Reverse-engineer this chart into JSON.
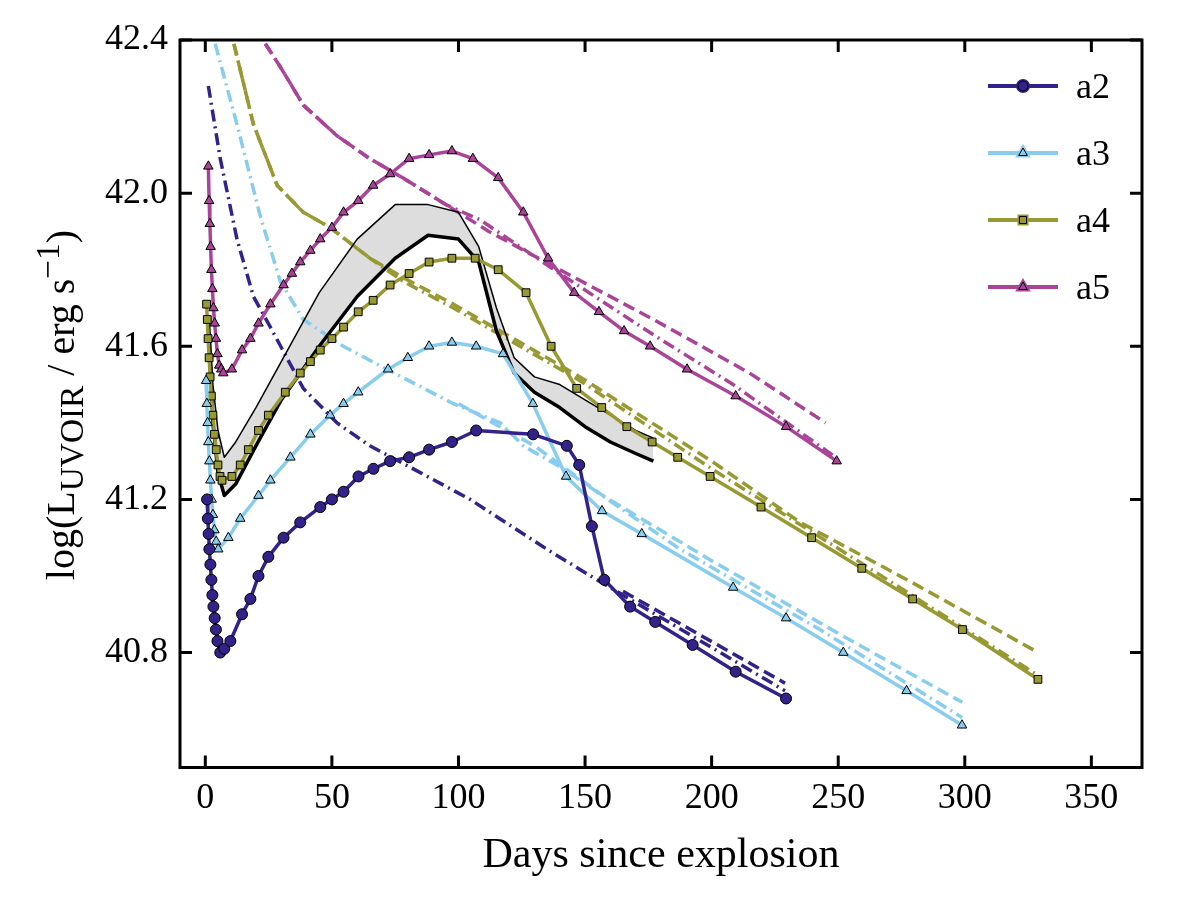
{
  "chart_data": {
    "type": "line",
    "xlabel": "Days since explosion",
    "ylabel": "log(L$_{UVOIR}$ / erg s$^{−1}$)",
    "xlim": [
      -10,
      370
    ],
    "xticks": [
      0,
      50,
      100,
      150,
      200,
      250,
      300,
      350
    ],
    "ylim": [
      40.5,
      42.4
    ],
    "yticks": [
      {
        "value": 40.8,
        "label": "40.8"
      },
      {
        "value": 41.2,
        "label": "41.2"
      },
      {
        "value": 41.6,
        "label": "41.6"
      },
      {
        "value": 42,
        "label": "42.0"
      },
      {
        "value": 42.4,
        "label": "42.4"
      }
    ],
    "legend": "top right",
    "series": [
      {
        "type": "line",
        "color": "#000000",
        "x": [
          1.5,
          3,
          5,
          7.5,
          12,
          20,
          30,
          45,
          60,
          75,
          88,
          100,
          108,
          115,
          122,
          130,
          140,
          150,
          160,
          170,
          177
        ],
        "values": [
          41.68,
          41.5,
          41.38,
          41.31,
          41.35,
          41.44,
          41.56,
          41.74,
          41.88,
          41.97,
          41.97,
          41.95,
          41.86,
          41.7,
          41.57,
          41.52,
          41.5,
          41.46,
          41.42,
          41.38,
          41.36
        ],
        "upper": [
          41.68,
          41.5,
          41.38,
          41.31,
          41.35,
          41.44,
          41.56,
          41.74,
          41.88,
          41.97,
          41.97,
          41.95,
          41.86,
          41.7,
          41.57,
          41.52,
          41.5,
          41.46,
          41.42,
          41.38,
          41.36
        ],
        "lower": [
          41.62,
          41.4,
          41.27,
          41.21,
          41.24,
          41.34,
          41.46,
          41.6,
          41.73,
          41.83,
          41.89,
          41.88,
          41.82,
          41.64,
          41.53,
          41.48,
          41.44,
          41.39,
          41.35,
          41.32,
          41.3
        ]
      },
      {
        "type": "line",
        "color": "#000000",
        "x": [
          1.5,
          3,
          5,
          7.5,
          12,
          20,
          30,
          45,
          60,
          75,
          88,
          100,
          108,
          115,
          122,
          130,
          140,
          150,
          160,
          170,
          177
        ],
        "values": [
          41.62,
          41.4,
          41.27,
          41.21,
          41.24,
          41.34,
          41.46,
          41.6,
          41.73,
          41.83,
          41.89,
          41.88,
          41.82,
          41.64,
          41.53,
          41.48,
          41.44,
          41.39,
          41.35,
          41.32,
          41.3
        ]
      },
      {
        "type": "line",
        "color": "#332288",
        "line_style": "dotted",
        "marker": "none",
        "x": [
          1.2,
          5.9,
          12.5,
          19,
          25.7,
          38.7,
          52,
          65,
          84.9,
          104.6,
          134.9,
          154.7,
          165,
          229
        ],
        "values": [
          42.28,
          42.09,
          41.88,
          41.73,
          41.65,
          41.49,
          41.4,
          41.34,
          41.27,
          41.2,
          41.07,
          40.99,
          40.95,
          40.7
        ]
      },
      {
        "type": "line",
        "color": "#332288",
        "line_style": "dashed",
        "marker": "none",
        "x": [
          165,
          229
        ],
        "values": [
          40.96,
          40.72
        ]
      },
      {
        "type": "line",
        "color": "#88ccee",
        "line_style": "dotted",
        "marker": "none",
        "x": [
          3.9,
          12.5,
          21.7,
          29.6,
          38.7,
          54.5,
          71.7,
          98,
          116.5,
          125.6,
          141.4,
          187.5,
          242.8,
          299
        ],
        "values": [
          42.39,
          42.18,
          41.94,
          41.77,
          41.67,
          41.6,
          41.54,
          41.45,
          41.4,
          41.34,
          41.28,
          41.07,
          40.86,
          40.63
        ]
      },
      {
        "type": "line",
        "color": "#88ccee",
        "line_style": "dashed",
        "marker": "none",
        "x": [
          100,
          130,
          157,
          200,
          250,
          299
        ],
        "values": [
          41.45,
          41.34,
          41.21,
          41.04,
          40.85,
          40.67
        ]
      },
      {
        "type": "line",
        "color": "#999933",
        "line_style": "dashed",
        "marker": "none",
        "x": [
          11.3,
          19,
          28.4,
          38.7,
          49.3,
          65,
          78,
          98,
          116.5,
          148,
          200,
          235,
          280,
          329
        ],
        "values": [
          42.39,
          42.18,
          42.02,
          41.95,
          41.91,
          41.83,
          41.78,
          41.71,
          41.64,
          41.52,
          41.3,
          41.14,
          40.98,
          40.8
        ]
      },
      {
        "type": "line",
        "color": "#999933",
        "line_style": "dotted",
        "marker": "none",
        "x": [
          11.3,
          19,
          28.4,
          38.7,
          49.3,
          65,
          78,
          98,
          116.5,
          148,
          200,
          260,
          329
        ],
        "values": [
          42.39,
          42.18,
          42.02,
          41.95,
          41.91,
          41.83,
          41.77,
          41.7,
          41.63,
          41.51,
          41.28,
          41.03,
          40.74
        ]
      },
      {
        "type": "line",
        "color": "#aa4499",
        "line_style": "dashed",
        "marker": "none",
        "x": [
          23.7,
          29.6,
          38.7,
          52,
          65,
          78,
          95,
          112,
          140,
          177,
          215,
          245
        ],
        "values": [
          42.39,
          42.33,
          42.23,
          42.15,
          42.09,
          42.04,
          41.97,
          41.9,
          41.8,
          41.67,
          41.53,
          41.4
        ]
      },
      {
        "type": "line",
        "color": "#aa4499",
        "line_style": "dotted",
        "marker": "none",
        "x": [
          23.7,
          29.6,
          38.7,
          52,
          65,
          78,
          95,
          108.6,
          140,
          177,
          208.5,
          249
        ],
        "values": [
          42.39,
          42.33,
          42.23,
          42.15,
          42.09,
          42.04,
          41.97,
          41.93,
          41.79,
          41.63,
          41.5,
          41.31
        ]
      },
      {
        "type": "line",
        "name": "a2",
        "color": "#332288",
        "line_style": "solid",
        "marker": "circle",
        "x": [
          0.7,
          1,
          1.3,
          1.6,
          2,
          2.4,
          2.8,
          3.2,
          3.7,
          4.2,
          4.8,
          5.9,
          7.5,
          9.9,
          14.5,
          17.8,
          21,
          24.9,
          30.9,
          37.5,
          45.4,
          50,
          54.6,
          60.5,
          66.4,
          73,
          80.5,
          88.4,
          97.4,
          107,
          129.5,
          142.8,
          147.7,
          152.7,
          157.6,
          167.8,
          177.7,
          192.5,
          209.5,
          229.4
        ],
        "values": [
          41.2,
          41.15,
          41.11,
          41.07,
          41.03,
          40.99,
          40.95,
          40.92,
          40.89,
          40.86,
          40.83,
          40.8,
          40.81,
          40.83,
          40.9,
          40.94,
          41,
          41.05,
          41.1,
          41.14,
          41.18,
          41.2,
          41.22,
          41.26,
          41.28,
          41.3,
          41.31,
          41.33,
          41.35,
          41.38,
          41.37,
          41.34,
          41.29,
          41.13,
          40.99,
          40.92,
          40.88,
          40.82,
          40.75,
          40.68
        ]
      },
      {
        "type": "line",
        "name": "a3",
        "color": "#88ccee",
        "line_style": "solid",
        "marker": "triangle",
        "x": [
          0.3,
          0.6,
          0.9,
          1.2,
          1.6,
          2,
          2.5,
          3,
          3.6,
          4.3,
          5.1,
          9.1,
          13.8,
          21,
          25.7,
          33.6,
          41.5,
          49.3,
          54.6,
          60.4,
          72.2,
          80,
          88.4,
          97.4,
          107,
          117.6,
          129.4,
          142.5,
          156.7,
          172.4,
          208.5,
          229.4,
          252,
          277,
          298.9
        ],
        "values": [
          41.51,
          41.45,
          41.4,
          41.35,
          41.3,
          41.25,
          41.2,
          41.16,
          41.12,
          41.09,
          41.07,
          41.1,
          41.15,
          41.21,
          41.25,
          41.31,
          41.37,
          41.42,
          41.45,
          41.48,
          41.54,
          41.57,
          41.6,
          41.61,
          41.6,
          41.58,
          41.45,
          41.26,
          41.17,
          41.11,
          40.97,
          40.89,
          40.8,
          40.7,
          40.61
        ]
      },
      {
        "type": "line",
        "name": "a4",
        "color": "#999933",
        "line_style": "solid",
        "marker": "square",
        "x": [
          0.5,
          0.8,
          1.1,
          1.5,
          1.9,
          2.4,
          3,
          3.6,
          4.3,
          5,
          5.8,
          6.6,
          10.5,
          13.8,
          17,
          21,
          24.9,
          31.6,
          37.5,
          41.5,
          45.4,
          50,
          54.6,
          60.4,
          66.3,
          73,
          80.5,
          88.4,
          97.4,
          106.6,
          115.7,
          126.7,
          136.6,
          146.7,
          156.6,
          166.5,
          176.5,
          186.6,
          199.4,
          219.5,
          239.5,
          259.3,
          279.4,
          299.1,
          328.9
        ],
        "values": [
          41.71,
          41.67,
          41.62,
          41.57,
          41.52,
          41.47,
          41.42,
          41.37,
          41.33,
          41.29,
          41.26,
          41.25,
          41.26,
          41.29,
          41.33,
          41.38,
          41.42,
          41.48,
          41.53,
          41.56,
          41.59,
          41.62,
          41.65,
          41.69,
          41.72,
          41.76,
          41.79,
          41.82,
          41.83,
          41.83,
          41.8,
          41.74,
          41.6,
          41.49,
          41.44,
          41.39,
          41.35,
          41.31,
          41.26,
          41.18,
          41.1,
          41.02,
          40.94,
          40.86,
          40.73
        ]
      },
      {
        "type": "line",
        "name": "a5",
        "color": "#aa4499",
        "line_style": "solid",
        "marker": "triangle",
        "x": [
          1.2,
          1.5,
          1.8,
          2.1,
          2.4,
          2.8,
          3.2,
          3.7,
          4.2,
          4.8,
          5.5,
          6.3,
          7.1,
          10.5,
          14.5,
          17.8,
          21,
          25.7,
          30.9,
          34.2,
          37.5,
          41.5,
          45.4,
          50,
          54.6,
          60.4,
          66.3,
          73,
          80.5,
          88.4,
          97.4,
          105.7,
          115.7,
          125.6,
          135.4,
          145.7,
          155.5,
          165.4,
          175.7,
          190.3,
          209.5,
          229.4,
          249.4
        ],
        "values": [
          42.07,
          41.98,
          41.92,
          41.86,
          41.8,
          41.75,
          41.7,
          41.66,
          41.62,
          41.58,
          41.55,
          41.54,
          41.53,
          41.54,
          41.59,
          41.62,
          41.66,
          41.71,
          41.76,
          41.79,
          41.82,
          41.85,
          41.88,
          41.91,
          41.95,
          41.98,
          42.02,
          42.05,
          42.09,
          42.1,
          42.11,
          42.09,
          42.04,
          41.95,
          41.83,
          41.74,
          41.69,
          41.64,
          41.6,
          41.54,
          41.47,
          41.39,
          41.3
        ]
      }
    ]
  }
}
